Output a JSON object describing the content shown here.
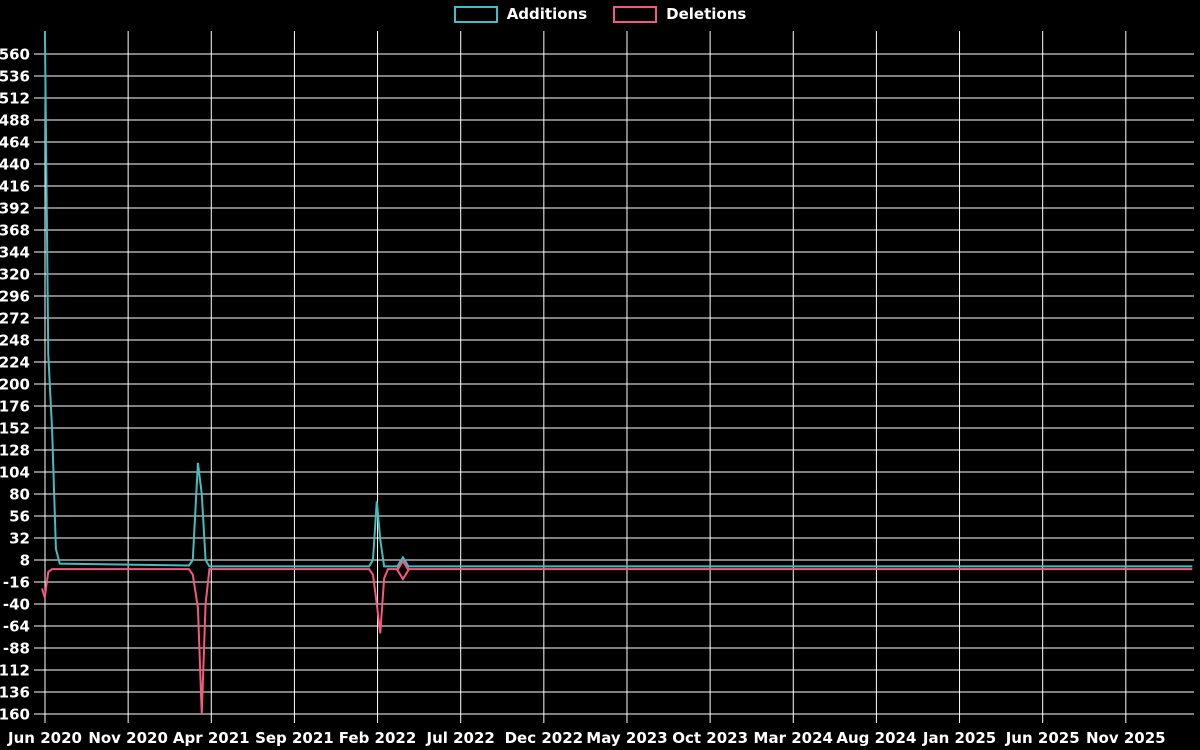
{
  "legend": {
    "items": [
      {
        "label": "Additions"
      },
      {
        "label": "Deletions"
      }
    ]
  },
  "chart_data": {
    "type": "line",
    "title": "",
    "background": "#000000",
    "grid_color": "#ffffff",
    "text_color": "#ffffff",
    "legend_position": "top-center",
    "grid": true,
    "x_axis": {
      "tick_labels": [
        "Jun 2020",
        "Nov 2020",
        "Apr 2021",
        "Sep 2021",
        "Feb 2022",
        "Jul 2022",
        "Dec 2022",
        "May 2023",
        "Oct 2023",
        "Mar 2024",
        "Aug 2024",
        "Jan 2025",
        "Jun 2025",
        "Nov 2025"
      ],
      "months_per_tick": 5,
      "start": "2020-06-01",
      "end_visible": "2026-03-01"
    },
    "y_axis": {
      "min": -160,
      "max": 560,
      "tick_step": 24,
      "tick_labels": [
        560,
        536,
        512,
        488,
        464,
        440,
        416,
        392,
        368,
        344,
        320,
        296,
        272,
        248,
        224,
        200,
        176,
        152,
        128,
        104,
        80,
        56,
        32,
        8,
        -16,
        -40,
        -64,
        -88,
        -112,
        -136,
        -160
      ],
      "top_clip_value": 584,
      "note": "First Additions point exceeds axis max and is clipped at plot top"
    },
    "series": [
      {
        "name": "Additions",
        "color": "#45bcbf",
        "marker": "diamond",
        "marker_point": {
          "date": "2022-03-17",
          "value": 1
        },
        "points": [
          [
            "2020-05-31",
            600
          ],
          [
            "2020-06-07",
            232
          ],
          [
            "2020-06-14",
            150
          ],
          [
            "2020-06-21",
            20
          ],
          [
            "2020-06-28",
            4
          ],
          [
            "2021-02-21",
            2
          ],
          [
            "2021-02-28",
            8
          ],
          [
            "2021-03-07",
            114
          ],
          [
            "2021-03-14",
            80
          ],
          [
            "2021-03-21",
            8
          ],
          [
            "2021-03-28",
            1
          ],
          [
            "2022-01-16",
            1
          ],
          [
            "2022-01-23",
            8
          ],
          [
            "2022-01-30",
            72
          ],
          [
            "2022-02-06",
            30
          ],
          [
            "2022-02-13",
            1
          ],
          [
            "2026-03-01",
            1
          ]
        ]
      },
      {
        "name": "Deletions",
        "color": "#f3597e",
        "marker": "diamond",
        "marker_point": {
          "date": "2022-03-17",
          "value": -3
        },
        "points": [
          [
            "2020-05-26",
            -23
          ],
          [
            "2020-05-31",
            -33
          ],
          [
            "2020-06-07",
            -5
          ],
          [
            "2020-06-14",
            -2
          ],
          [
            "2021-02-21",
            -2
          ],
          [
            "2021-02-28",
            -8
          ],
          [
            "2021-03-07",
            -44
          ],
          [
            "2021-03-14",
            -160
          ],
          [
            "2021-03-21",
            -40
          ],
          [
            "2021-03-28",
            -2
          ],
          [
            "2022-01-16",
            -2
          ],
          [
            "2022-01-23",
            -8
          ],
          [
            "2022-01-30",
            -40
          ],
          [
            "2022-02-06",
            -72
          ],
          [
            "2022-02-13",
            -12
          ],
          [
            "2022-02-20",
            -2
          ],
          [
            "2026-03-01",
            -2
          ]
        ]
      }
    ]
  }
}
